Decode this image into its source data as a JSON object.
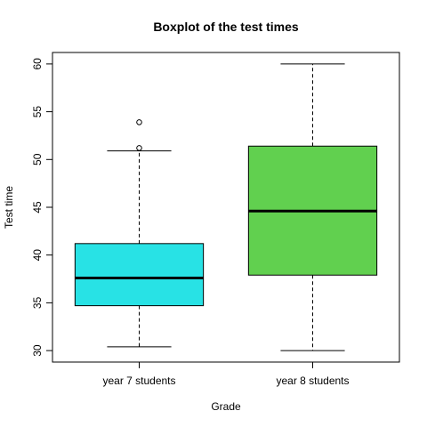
{
  "chart_data": {
    "type": "boxplot",
    "title": "Boxplot of the test times",
    "xlabel": "Grade",
    "ylabel": "Test time",
    "ylim": [
      28.8,
      61.2
    ],
    "yticks": [
      30,
      35,
      40,
      45,
      50,
      55,
      60
    ],
    "grid": false,
    "categories": [
      "year 7 students",
      "year 8 students"
    ],
    "boxes": [
      {
        "category": "year 7 students",
        "color": "#28E2E5",
        "whisker_low": 30.4,
        "q1": 34.7,
        "median": 37.6,
        "q3": 41.2,
        "whisker_high": 50.9,
        "outliers": [
          51.2,
          53.9
        ]
      },
      {
        "category": "year 8 students",
        "color": "#61D04F",
        "whisker_low": 30.0,
        "q1": 37.9,
        "median": 44.6,
        "q3": 51.4,
        "whisker_high": 60.0,
        "outliers": []
      }
    ]
  }
}
